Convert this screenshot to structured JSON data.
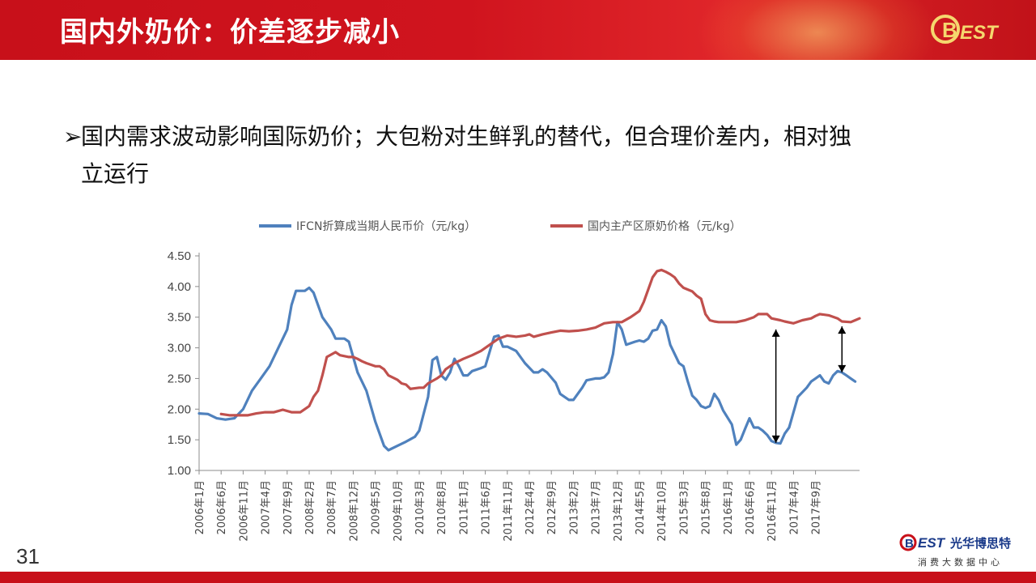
{
  "header": {
    "title": "国内外奶价：价差逐步减小",
    "logo_text": "BEST"
  },
  "bullet": {
    "marker": "➢",
    "line1": "国内需求波动影响国际奶价；大包粉对生鲜乳的替代，但合理价差内，相对独",
    "line2": "立运行"
  },
  "page_number": "31",
  "brand": {
    "name": "光华博思特",
    "tagline": "消费大数据中心",
    "logo_text": "BEST"
  },
  "colors": {
    "header_red": "#c8101a",
    "series_blue": "#4f81bd",
    "series_red": "#c0504d",
    "axis_gray": "#8c8c8c"
  },
  "chart_data": {
    "type": "line",
    "ylim": [
      1.0,
      4.5
    ],
    "yticks": [
      "1.00",
      "1.50",
      "2.00",
      "2.50",
      "3.00",
      "3.50",
      "4.00",
      "4.50"
    ],
    "xtick_labels": [
      "2006年1月",
      "2006年6月",
      "2006年11月",
      "2007年4月",
      "2007年9月",
      "2008年2月",
      "2008年7月",
      "2008年12月",
      "2009年5月",
      "2009年10月",
      "2010年3月",
      "2010年8月",
      "2011年1月",
      "2011年6月",
      "2011年11月",
      "2012年4月",
      "2012年9月",
      "2013年2月",
      "2013年7月",
      "2013年12月",
      "2014年5月",
      "2014年10月",
      "2015年3月",
      "2015年8月",
      "2016年1月",
      "2016年6月",
      "2016年11月",
      "2017年4月",
      "2017年9月"
    ],
    "series": [
      {
        "name": "IFCN折算成当期人民币价（元/kg）",
        "color": "#4f81bd",
        "points": [
          [
            0,
            1.93
          ],
          [
            2,
            1.92
          ],
          [
            4,
            1.85
          ],
          [
            6,
            1.83
          ],
          [
            8,
            1.85
          ],
          [
            10,
            2.0
          ],
          [
            12,
            2.3
          ],
          [
            14,
            2.5
          ],
          [
            16,
            2.7
          ],
          [
            18,
            3.0
          ],
          [
            20,
            3.3
          ],
          [
            21,
            3.7
          ],
          [
            22,
            3.93
          ],
          [
            24,
            3.93
          ],
          [
            25,
            3.98
          ],
          [
            26,
            3.9
          ],
          [
            28,
            3.5
          ],
          [
            30,
            3.3
          ],
          [
            31,
            3.15
          ],
          [
            33,
            3.15
          ],
          [
            34,
            3.1
          ],
          [
            36,
            2.6
          ],
          [
            38,
            2.3
          ],
          [
            40,
            1.8
          ],
          [
            42,
            1.4
          ],
          [
            43,
            1.33
          ],
          [
            45,
            1.4
          ],
          [
            47,
            1.47
          ],
          [
            49,
            1.55
          ],
          [
            50,
            1.65
          ],
          [
            52,
            2.2
          ],
          [
            53,
            2.8
          ],
          [
            54,
            2.85
          ],
          [
            55,
            2.55
          ],
          [
            56,
            2.48
          ],
          [
            57,
            2.6
          ],
          [
            58,
            2.82
          ],
          [
            59,
            2.7
          ],
          [
            60,
            2.55
          ],
          [
            61,
            2.55
          ],
          [
            62,
            2.62
          ],
          [
            64,
            2.67
          ],
          [
            65,
            2.7
          ],
          [
            67,
            3.18
          ],
          [
            68,
            3.2
          ],
          [
            69,
            3.02
          ],
          [
            70,
            3.02
          ],
          [
            72,
            2.95
          ],
          [
            74,
            2.75
          ],
          [
            76,
            2.6
          ],
          [
            77,
            2.6
          ],
          [
            78,
            2.65
          ],
          [
            79,
            2.6
          ],
          [
            81,
            2.43
          ],
          [
            82,
            2.25
          ],
          [
            84,
            2.15
          ],
          [
            85,
            2.15
          ],
          [
            87,
            2.35
          ],
          [
            88,
            2.47
          ],
          [
            90,
            2.5
          ],
          [
            91,
            2.5
          ],
          [
            92,
            2.52
          ],
          [
            93,
            2.6
          ],
          [
            94,
            2.9
          ],
          [
            95,
            3.42
          ],
          [
            96,
            3.3
          ],
          [
            97,
            3.05
          ],
          [
            99,
            3.1
          ],
          [
            100,
            3.12
          ],
          [
            101,
            3.1
          ],
          [
            102,
            3.15
          ],
          [
            103,
            3.28
          ],
          [
            104,
            3.3
          ],
          [
            105,
            3.45
          ],
          [
            106,
            3.35
          ],
          [
            107,
            3.05
          ],
          [
            109,
            2.75
          ],
          [
            110,
            2.7
          ],
          [
            111,
            2.45
          ],
          [
            112,
            2.22
          ],
          [
            113,
            2.15
          ],
          [
            114,
            2.05
          ],
          [
            115,
            2.02
          ],
          [
            116,
            2.05
          ],
          [
            117,
            2.25
          ],
          [
            118,
            2.15
          ],
          [
            119,
            1.98
          ],
          [
            121,
            1.75
          ],
          [
            122,
            1.42
          ],
          [
            123,
            1.5
          ],
          [
            124,
            1.68
          ],
          [
            125,
            1.85
          ],
          [
            126,
            1.7
          ],
          [
            127,
            1.7
          ],
          [
            128,
            1.65
          ],
          [
            129,
            1.58
          ],
          [
            130,
            1.48
          ],
          [
            131,
            1.45
          ],
          [
            132,
            1.44
          ],
          [
            133,
            1.6
          ],
          [
            134,
            1.7
          ],
          [
            135,
            1.95
          ],
          [
            136,
            2.2
          ],
          [
            138,
            2.35
          ],
          [
            139,
            2.45
          ],
          [
            140,
            2.5
          ],
          [
            141,
            2.55
          ],
          [
            142,
            2.45
          ],
          [
            143,
            2.42
          ],
          [
            144,
            2.55
          ],
          [
            145,
            2.62
          ],
          [
            146,
            2.6
          ],
          [
            147,
            2.55
          ],
          [
            148,
            2.5
          ],
          [
            149,
            2.45
          ]
        ]
      },
      {
        "name": "国内主产区原奶价格（元/kg）",
        "color": "#c0504d",
        "points": [
          [
            5,
            1.92
          ],
          [
            7,
            1.9
          ],
          [
            9,
            1.9
          ],
          [
            11,
            1.9
          ],
          [
            13,
            1.93
          ],
          [
            15,
            1.95
          ],
          [
            17,
            1.95
          ],
          [
            18,
            1.97
          ],
          [
            19,
            1.99
          ],
          [
            21,
            1.95
          ],
          [
            23,
            1.95
          ],
          [
            25,
            2.05
          ],
          [
            26,
            2.2
          ],
          [
            27,
            2.3
          ],
          [
            28,
            2.55
          ],
          [
            29,
            2.85
          ],
          [
            31,
            2.93
          ],
          [
            32,
            2.88
          ],
          [
            34,
            2.85
          ],
          [
            35,
            2.85
          ],
          [
            36,
            2.82
          ],
          [
            37,
            2.78
          ],
          [
            38,
            2.75
          ],
          [
            40,
            2.7
          ],
          [
            41,
            2.7
          ],
          [
            42,
            2.65
          ],
          [
            43,
            2.55
          ],
          [
            45,
            2.48
          ],
          [
            46,
            2.42
          ],
          [
            47,
            2.4
          ],
          [
            48,
            2.33
          ],
          [
            50,
            2.35
          ],
          [
            51,
            2.35
          ],
          [
            52,
            2.42
          ],
          [
            54,
            2.5
          ],
          [
            55,
            2.55
          ],
          [
            56,
            2.65
          ],
          [
            58,
            2.75
          ],
          [
            60,
            2.82
          ],
          [
            62,
            2.88
          ],
          [
            64,
            2.95
          ],
          [
            66,
            3.05
          ],
          [
            68,
            3.15
          ],
          [
            70,
            3.2
          ],
          [
            72,
            3.18
          ],
          [
            74,
            3.2
          ],
          [
            75,
            3.22
          ],
          [
            76,
            3.18
          ],
          [
            78,
            3.22
          ],
          [
            80,
            3.25
          ],
          [
            82,
            3.28
          ],
          [
            84,
            3.27
          ],
          [
            86,
            3.28
          ],
          [
            88,
            3.3
          ],
          [
            90,
            3.33
          ],
          [
            92,
            3.4
          ],
          [
            94,
            3.42
          ],
          [
            96,
            3.42
          ],
          [
            98,
            3.5
          ],
          [
            99,
            3.55
          ],
          [
            100,
            3.6
          ],
          [
            101,
            3.75
          ],
          [
            102,
            3.95
          ],
          [
            103,
            4.15
          ],
          [
            104,
            4.25
          ],
          [
            105,
            4.27
          ],
          [
            106,
            4.24
          ],
          [
            107,
            4.2
          ],
          [
            108,
            4.15
          ],
          [
            109,
            4.05
          ],
          [
            110,
            3.98
          ],
          [
            111,
            3.95
          ],
          [
            112,
            3.92
          ],
          [
            113,
            3.85
          ],
          [
            114,
            3.8
          ],
          [
            115,
            3.55
          ],
          [
            116,
            3.45
          ],
          [
            117,
            3.43
          ],
          [
            118,
            3.42
          ],
          [
            120,
            3.42
          ],
          [
            122,
            3.42
          ],
          [
            124,
            3.45
          ],
          [
            126,
            3.5
          ],
          [
            127,
            3.55
          ],
          [
            129,
            3.55
          ],
          [
            130,
            3.48
          ],
          [
            132,
            3.45
          ],
          [
            133,
            3.43
          ],
          [
            135,
            3.4
          ],
          [
            137,
            3.45
          ],
          [
            139,
            3.48
          ],
          [
            140,
            3.52
          ],
          [
            141,
            3.55
          ],
          [
            143,
            3.53
          ],
          [
            145,
            3.48
          ],
          [
            146,
            3.43
          ],
          [
            148,
            3.42
          ],
          [
            149,
            3.45
          ],
          [
            150,
            3.48
          ]
        ]
      }
    ],
    "x_max": 150,
    "annotations": [
      {
        "type": "double-arrow",
        "x": 131,
        "y_from": 1.45,
        "y_to": 3.3
      },
      {
        "type": "double-arrow",
        "x": 146,
        "y_from": 2.6,
        "y_to": 3.35
      }
    ]
  }
}
